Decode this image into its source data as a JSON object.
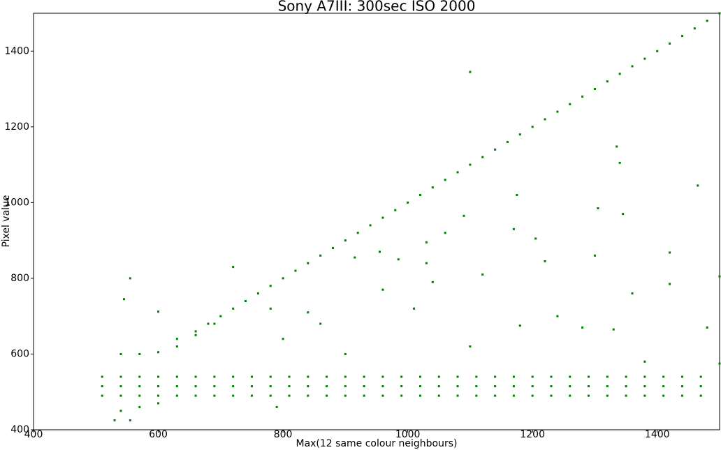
{
  "chart_data": {
    "type": "scatter",
    "title": "Sony A7III:  300sec ISO 2000",
    "x_label": "Max(12 same colour neighbours)",
    "y_label": "Pixel value",
    "color": "#007f00",
    "xlim": [
      400,
      1500
    ],
    "ylim": [
      400,
      1500
    ],
    "xticks": [
      400,
      600,
      800,
      1000,
      1200,
      1400
    ],
    "yticks": [
      400,
      600,
      800,
      1000,
      1200,
      1400
    ],
    "grid": false,
    "x": [
      660,
      680,
      700,
      720,
      740,
      760,
      780,
      800,
      820,
      840,
      860,
      880,
      900,
      920,
      940,
      960,
      980,
      1000,
      1020,
      1040,
      1060,
      1080,
      1100,
      1120,
      1140,
      1160,
      1180,
      1200,
      1220,
      1240,
      1260,
      1280,
      1300,
      1320,
      1340,
      1360,
      1380,
      1400,
      1420,
      1440,
      1460,
      1480,
      1500,
      510,
      510,
      510,
      540,
      540,
      540,
      570,
      570,
      570,
      600,
      600,
      600,
      630,
      630,
      630,
      660,
      660,
      660,
      690,
      690,
      690,
      720,
      720,
      720,
      750,
      750,
      750,
      780,
      780,
      780,
      810,
      810,
      810,
      840,
      840,
      840,
      870,
      870,
      870,
      900,
      900,
      900,
      930,
      930,
      930,
      960,
      960,
      960,
      990,
      990,
      990,
      1020,
      1020,
      1020,
      1050,
      1050,
      1050,
      1080,
      1080,
      1080,
      1110,
      1110,
      1110,
      1140,
      1140,
      1140,
      1170,
      1170,
      1170,
      1200,
      1200,
      1200,
      1230,
      1230,
      1230,
      1260,
      1260,
      1260,
      1290,
      1290,
      1290,
      1320,
      1320,
      1320,
      1350,
      1350,
      1350,
      1380,
      1380,
      1380,
      1410,
      1410,
      1410,
      1440,
      1440,
      1440,
      1470,
      1470,
      1470,
      540,
      540,
      570,
      570,
      600,
      600,
      630,
      630,
      660,
      690,
      555,
      545,
      600,
      720,
      1100,
      1335,
      1340,
      1465,
      1305,
      1345,
      1175,
      1090,
      1205,
      1170,
      1060,
      1030,
      1300,
      1420,
      955,
      1220,
      1030,
      915,
      985,
      840,
      860,
      1040,
      1120,
      1360,
      1420,
      1500,
      1180,
      1240,
      1280,
      1330,
      1480,
      1010,
      960,
      780,
      800,
      900,
      1100,
      1380,
      1500,
      555,
      530,
      790
    ],
    "values": [
      660,
      680,
      700,
      720,
      740,
      760,
      780,
      800,
      820,
      840,
      860,
      880,
      900,
      920,
      940,
      960,
      980,
      1000,
      1020,
      1040,
      1060,
      1080,
      1100,
      1120,
      1140,
      1160,
      1180,
      1200,
      1220,
      1240,
      1260,
      1280,
      1300,
      1320,
      1340,
      1360,
      1380,
      1400,
      1420,
      1440,
      1460,
      1480,
      1500,
      490,
      515,
      540,
      490,
      515,
      540,
      490,
      515,
      540,
      490,
      515,
      540,
      490,
      515,
      540,
      490,
      515,
      540,
      490,
      515,
      540,
      490,
      515,
      540,
      490,
      515,
      540,
      490,
      515,
      540,
      490,
      515,
      540,
      490,
      515,
      540,
      490,
      515,
      540,
      490,
      515,
      540,
      490,
      515,
      540,
      490,
      515,
      540,
      490,
      515,
      540,
      490,
      515,
      540,
      490,
      515,
      540,
      490,
      515,
      540,
      490,
      515,
      540,
      490,
      515,
      540,
      490,
      515,
      540,
      490,
      515,
      540,
      490,
      515,
      540,
      490,
      515,
      540,
      490,
      515,
      540,
      490,
      515,
      540,
      490,
      515,
      540,
      490,
      515,
      540,
      490,
      515,
      540,
      490,
      515,
      540,
      490,
      515,
      540,
      450,
      600,
      460,
      600,
      470,
      605,
      620,
      640,
      650,
      680,
      800,
      745,
      712,
      830,
      1345,
      1148,
      1105,
      1045,
      985,
      970,
      1020,
      965,
      905,
      930,
      920,
      895,
      860,
      868,
      870,
      845,
      840,
      855,
      850,
      710,
      680,
      790,
      810,
      760,
      785,
      805,
      675,
      700,
      670,
      665,
      670,
      720,
      770,
      720,
      640,
      600,
      620,
      580,
      575,
      425,
      425,
      460
    ]
  }
}
